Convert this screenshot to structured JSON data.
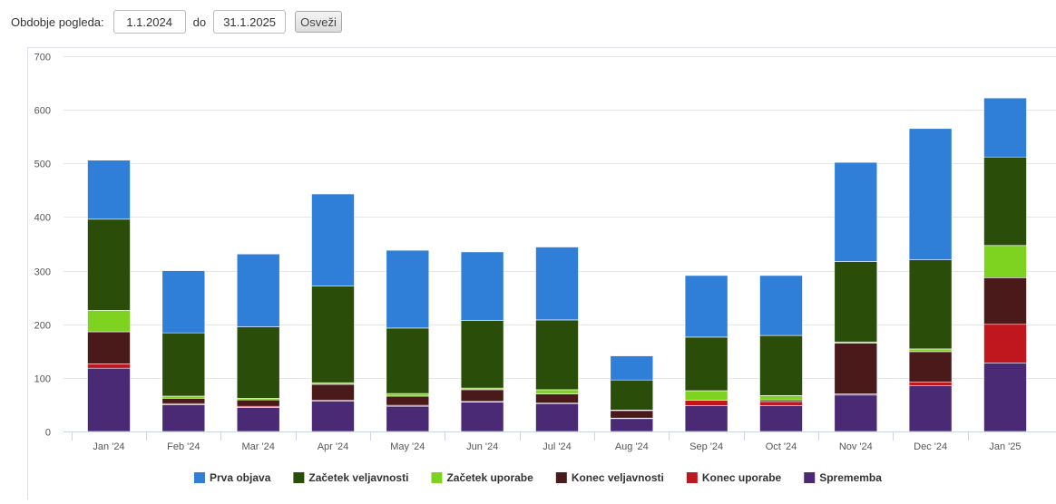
{
  "toolbar": {
    "period_label": "Obdobje pogleda:",
    "from_value": "1.1.2024",
    "to_label": "do",
    "to_value": "31.1.2025",
    "refresh_label": "Osveži"
  },
  "chart_data": {
    "type": "bar",
    "stacked": true,
    "categories": [
      "Jan '24",
      "Feb '24",
      "Mar '24",
      "Apr '24",
      "May '24",
      "Jun '24",
      "Jul '24",
      "Aug '24",
      "Sep '24",
      "Oct '24",
      "Nov '24",
      "Dec '24",
      "Jan '25"
    ],
    "ylim": [
      0,
      700
    ],
    "yticks": [
      0,
      100,
      200,
      300,
      400,
      500,
      600,
      700
    ],
    "grid": true,
    "legend": "bottom",
    "series": [
      {
        "name": "Sprememba",
        "color": "#4a2a74",
        "values": [
          118,
          50,
          45,
          57,
          47,
          55,
          52,
          24,
          48,
          48,
          68,
          85,
          128
        ]
      },
      {
        "name": "Konec uporabe",
        "color": "#c0171f",
        "values": [
          8,
          2,
          2,
          1,
          2,
          1,
          1,
          1,
          10,
          8,
          2,
          7,
          72
        ]
      },
      {
        "name": "Konec veljavnosti",
        "color": "#4a1a1a",
        "values": [
          60,
          10,
          12,
          30,
          17,
          22,
          17,
          14,
          0,
          3,
          95,
          57,
          87
        ]
      },
      {
        "name": "Začetek uporabe",
        "color": "#7ed321",
        "values": [
          40,
          4,
          3,
          3,
          5,
          3,
          8,
          1,
          18,
          8,
          2,
          5,
          60
        ]
      },
      {
        "name": "Začetek veljavnosti",
        "color": "#2a4d0a",
        "values": [
          170,
          118,
          133,
          180,
          122,
          126,
          130,
          56,
          100,
          112,
          150,
          166,
          165
        ]
      },
      {
        "name": "Prva objava",
        "color": "#2f7ed8",
        "values": [
          110,
          116,
          136,
          172,
          145,
          128,
          136,
          45,
          115,
          112,
          185,
          245,
          110
        ]
      }
    ]
  }
}
